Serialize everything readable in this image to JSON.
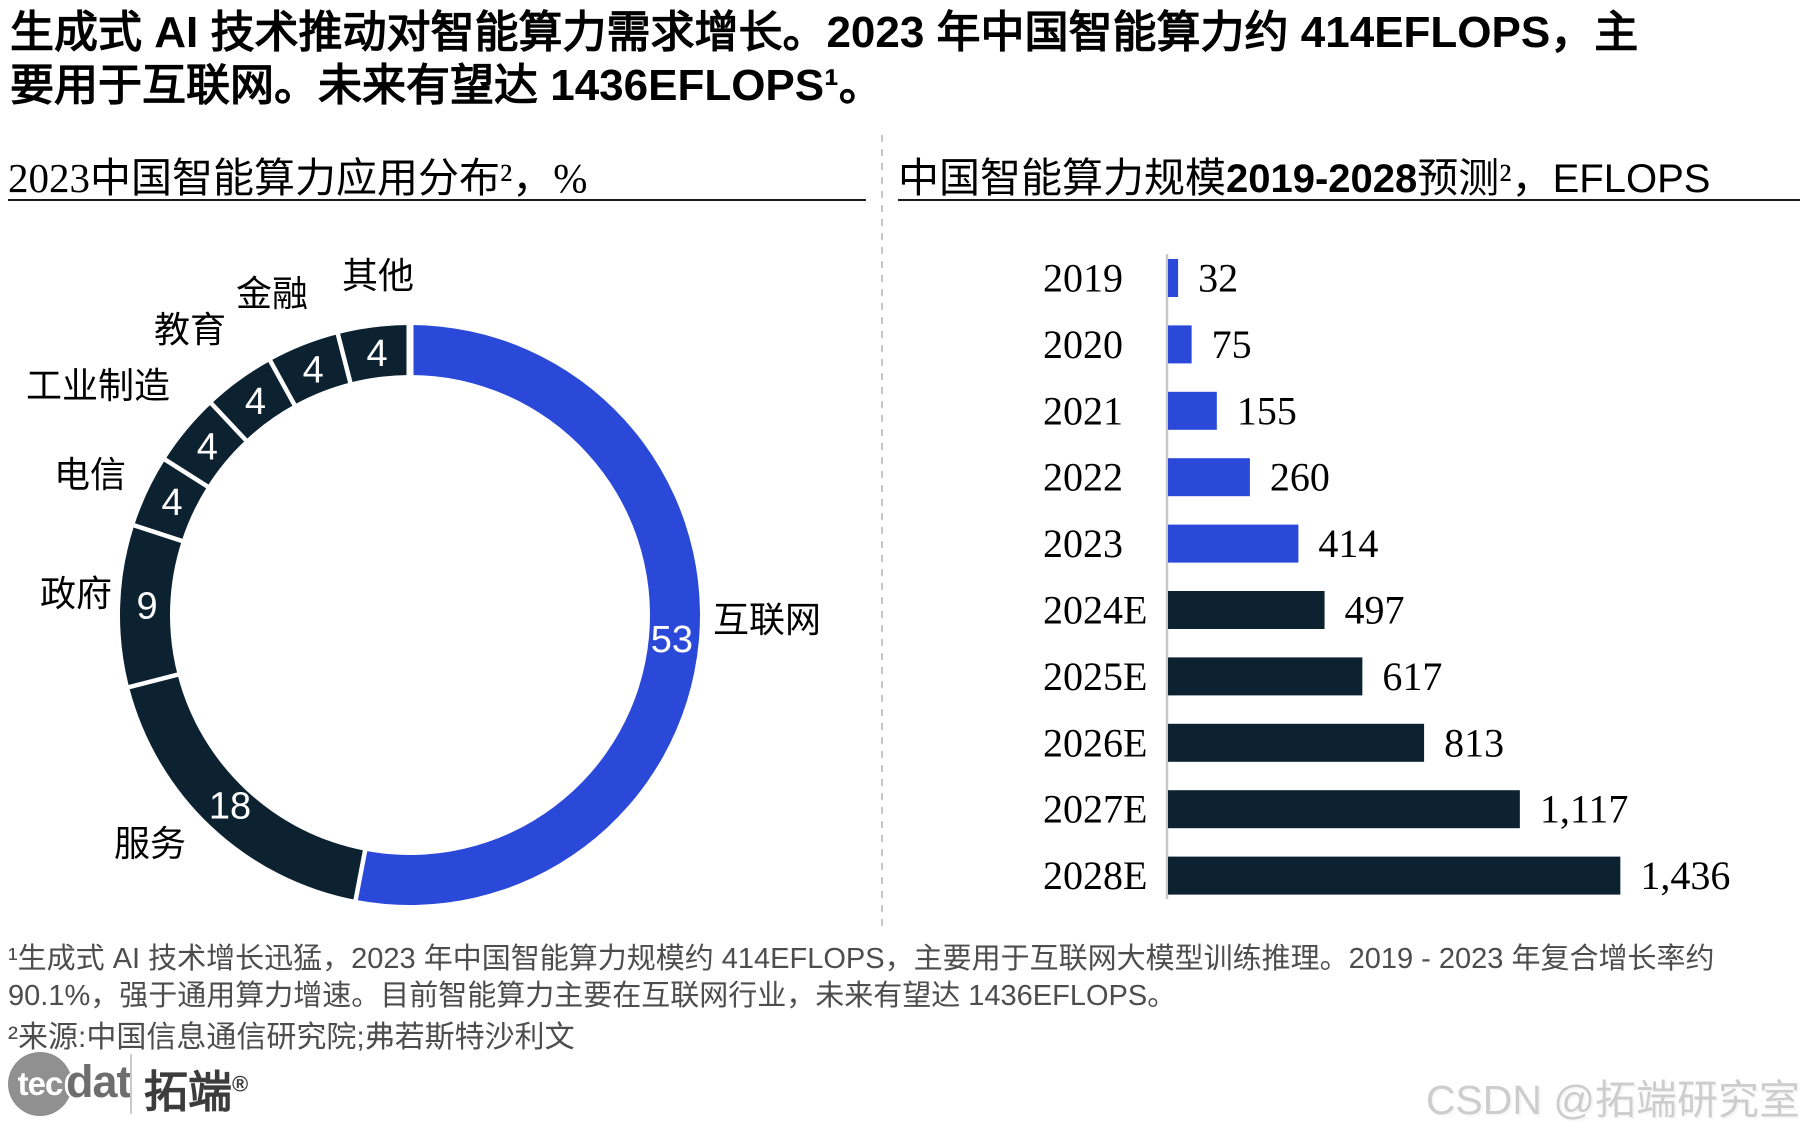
{
  "page": {
    "title_line1": "生成式 AI 技术推动对智能算力需求增长。2023 年中国智能算力约 414EFLOPS，主",
    "title_line2": "要用于互联网。未来有望达 1436EFLOPS¹。"
  },
  "left_panel": {
    "title": "2023中国智能算力应用分布²，%"
  },
  "right_panel": {
    "title_cn1": "中国智能算力规模",
    "title_years": "2019-2028",
    "title_cn2": "预测²，",
    "title_unit": "EFLOPS"
  },
  "chart_data": [
    {
      "type": "pie",
      "subtype": "donut",
      "title": "2023中国智能算力应用分布²，%",
      "unit": "%",
      "start_angle_deg": 0,
      "clockwise": true,
      "segments": [
        {
          "label": "互联网",
          "value": 53,
          "color": "#2b49d8"
        },
        {
          "label": "服务",
          "value": 18,
          "color": "#0d2231"
        },
        {
          "label": "政府",
          "value": 9,
          "color": "#0d2231"
        },
        {
          "label": "电信",
          "value": 4,
          "color": "#0d2231"
        },
        {
          "label": "工业制造",
          "value": 4,
          "color": "#0d2231"
        },
        {
          "label": "教育",
          "value": 4,
          "color": "#0d2231"
        },
        {
          "label": "金融",
          "value": 4,
          "color": "#0d2231"
        },
        {
          "label": "其他",
          "value": 4,
          "color": "#0d2231"
        }
      ]
    },
    {
      "type": "bar",
      "orientation": "horizontal",
      "title": "中国智能算力规模2019-2028预测²，EFLOPS",
      "unit": "EFLOPS",
      "categories": [
        "2019",
        "2020",
        "2021",
        "2022",
        "2023",
        "2024E",
        "2025E",
        "2026E",
        "2027E",
        "2028E"
      ],
      "values": [
        32,
        75,
        155,
        260,
        414,
        497,
        617,
        813,
        1117,
        1436
      ],
      "value_labels": [
        "32",
        "75",
        "155",
        "260",
        "414",
        "497",
        "617",
        "813",
        "1,117",
        "1,436"
      ],
      "colors": [
        "#2b49d8",
        "#2b49d8",
        "#2b49d8",
        "#2b49d8",
        "#2b49d8",
        "#0d2231",
        "#0d2231",
        "#0d2231",
        "#0d2231",
        "#0d2231"
      ],
      "xlim": [
        0,
        1436
      ],
      "grid": false,
      "legend": false
    }
  ],
  "footnotes": {
    "note1": "¹生成式 AI 技术增长迅猛，2023 年中国智能算力规模约 414EFLOPS，主要用于互联网大模型训练推理。2019 - 2023 年复合增长率约 90.1%，强于通用算力增速。目前智能算力主要在互联网行业，未来有望达 1436EFLOPS。",
    "note2": "²来源:中国信息通信研究院;弗若斯特沙利文"
  },
  "logo": {
    "circle_text": "tec",
    "suffix_text": "dat",
    "brand_cn": "拓端",
    "registered_mark": "®"
  },
  "watermark": "CSDN @拓端研究室",
  "colors": {
    "accent_blue": "#2b49d8",
    "dark_navy": "#0d2231",
    "footnote_gray": "#4d4d4d",
    "axis_gray": "#c8c8c8"
  }
}
